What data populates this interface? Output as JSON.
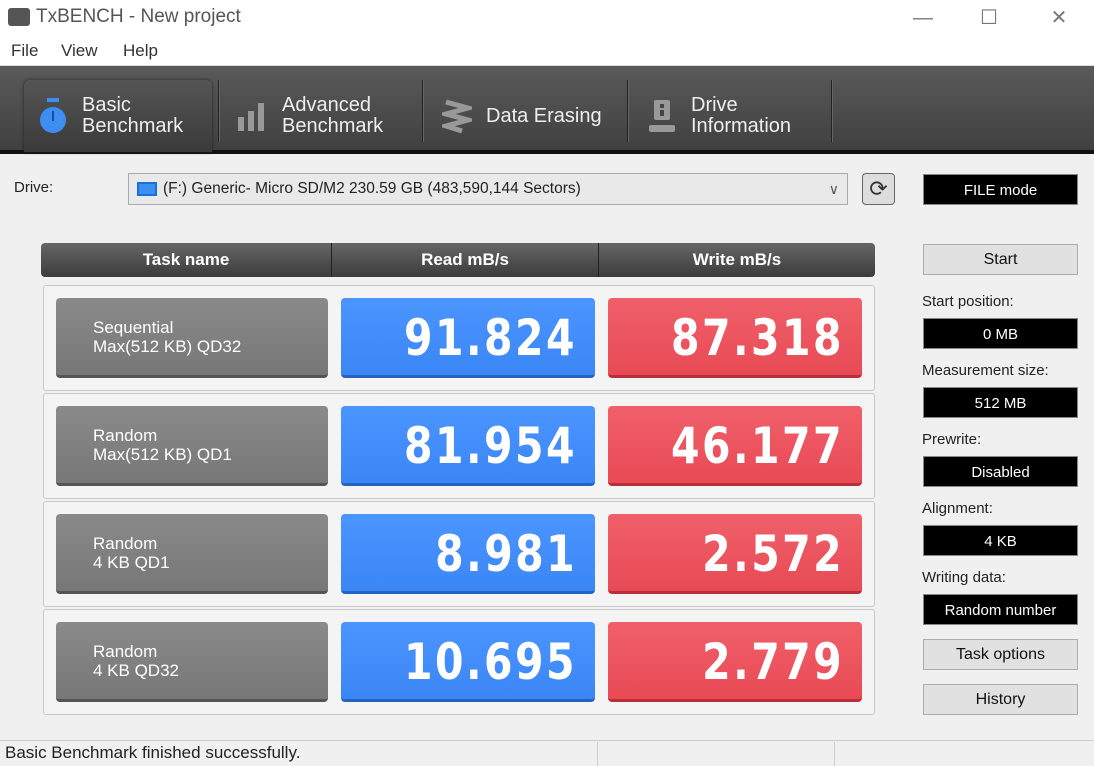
{
  "window": {
    "title": "TxBENCH - New project"
  },
  "menu": [
    "File",
    "View",
    "Help"
  ],
  "tabs": [
    {
      "l1": "Basic",
      "l2": "Benchmark",
      "icon": "stopwatch-icon"
    },
    {
      "l1": "Advanced",
      "l2": "Benchmark",
      "icon": "bar-chart-icon"
    },
    {
      "l1": "Data Erasing",
      "l2": "",
      "icon": "eraser-icon"
    },
    {
      "l1": "Drive",
      "l2": "Information",
      "icon": "drive-info-icon"
    }
  ],
  "drive": {
    "label": "Drive:",
    "value": "(F:) Generic- Micro SD/M2  230.59 GB (483,590,144 Sectors)"
  },
  "table": {
    "headers": [
      "Task name",
      "Read mB/s",
      "Write mB/s"
    ],
    "rows": [
      {
        "l1": "Sequential",
        "l2": "Max(512 KB) QD32",
        "read": "91.824",
        "write": "87.318"
      },
      {
        "l1": "Random",
        "l2": "Max(512 KB) QD1",
        "read": "81.954",
        "write": "46.177"
      },
      {
        "l1": "Random",
        "l2": "4 KB QD1",
        "read": "8.981",
        "write": "2.572"
      },
      {
        "l1": "Random",
        "l2": "4 KB QD32",
        "read": "10.695",
        "write": "2.779"
      }
    ]
  },
  "side": {
    "mode": "FILE mode",
    "start": "Start",
    "start_pos_label": "Start position:",
    "start_pos": "0 MB",
    "meas_label": "Measurement size:",
    "meas": "512 MB",
    "prewrite_label": "Prewrite:",
    "prewrite": "Disabled",
    "align_label": "Alignment:",
    "align": "4 KB",
    "writing_label": "Writing data:",
    "writing": "Random number",
    "task_options": "Task options",
    "history": "History"
  },
  "status": "Basic Benchmark finished successfully.",
  "colors": {
    "read": "#3a86f5",
    "write": "#e84a55",
    "toolbar": "#4a4a4a"
  }
}
